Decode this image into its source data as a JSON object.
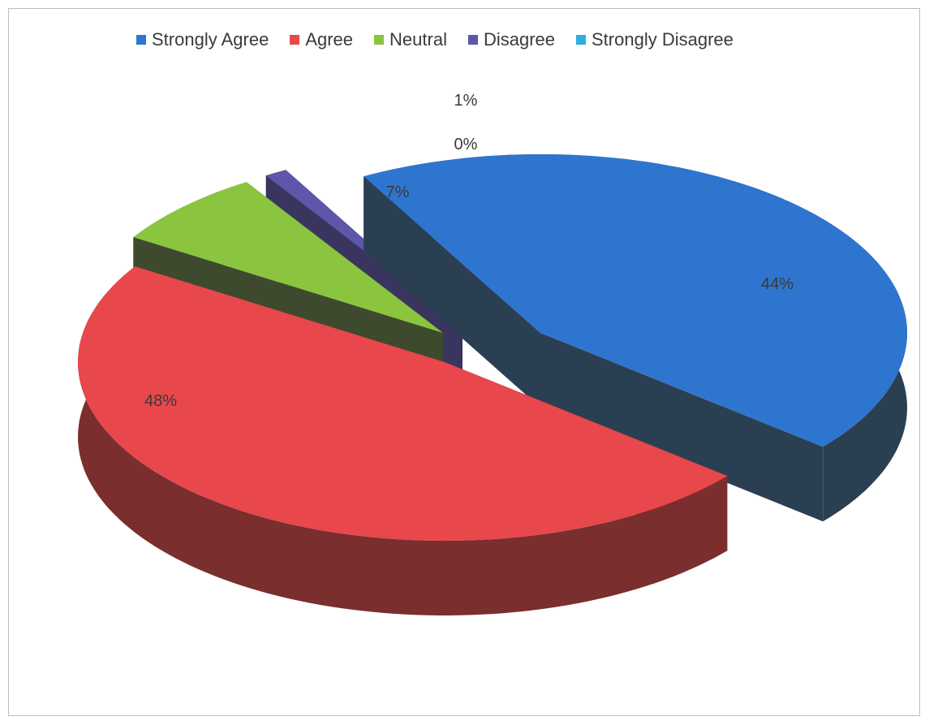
{
  "chart_data": {
    "type": "pie",
    "title": "",
    "legend_position": "top",
    "slices": [
      {
        "name": "Strongly Agree",
        "value": 44,
        "label": "44%",
        "color": "#2E75D0",
        "side_color": "#2B3F52"
      },
      {
        "name": "Agree",
        "value": 48,
        "label": "48%",
        "color": "#E8474B",
        "side_color": "#7A2E2E"
      },
      {
        "name": "Neutral",
        "value": 7,
        "label": "7%",
        "color": "#8BC540",
        "side_color": "#3D4A2E"
      },
      {
        "name": "Disagree",
        "value": 1,
        "label": "1%",
        "color": "#5E56A8",
        "side_color": "#3A355F"
      },
      {
        "name": "Strongly Disagree",
        "value": 0,
        "label": "0%",
        "color": "#2EAEE0",
        "side_color": "#1E6E8E"
      }
    ]
  }
}
